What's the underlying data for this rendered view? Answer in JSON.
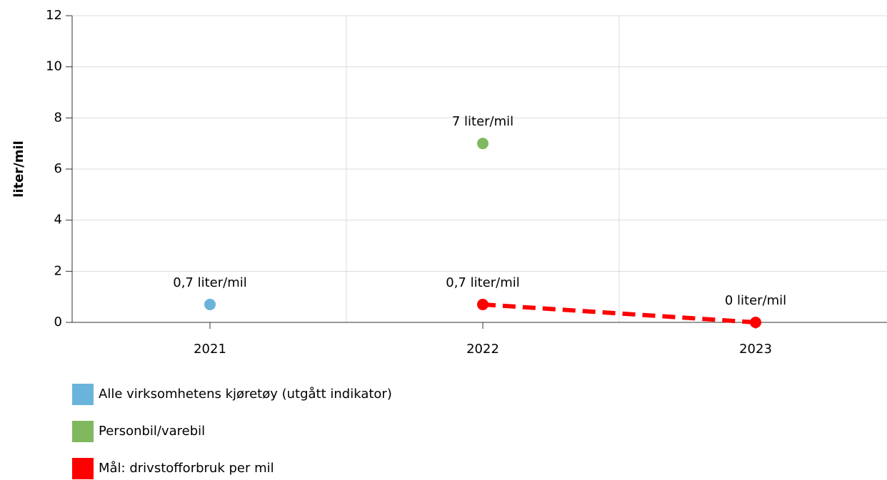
{
  "chart_data": {
    "type": "line",
    "categories": [
      "2021",
      "2022",
      "2023"
    ],
    "y_label": "liter/mil",
    "ylim": [
      0,
      12
    ],
    "yticks": [
      0,
      2,
      4,
      6,
      8,
      10,
      12
    ],
    "grid": true,
    "series": [
      {
        "name": "Alle virksomhetens kjøretøy (utgått indikator)",
        "color": "#6ab4dc",
        "values": [
          0.7,
          null,
          null
        ],
        "value_labels": [
          "0,7 liter/mil",
          null,
          null
        ]
      },
      {
        "name": "Personbil/varebil",
        "color": "#80b860",
        "values": [
          null,
          7,
          null
        ],
        "value_labels": [
          null,
          "7 liter/mil",
          null
        ]
      },
      {
        "name": "Mål: drivstofforbruk per mil",
        "color": "#ff0000",
        "dashed": true,
        "values": [
          null,
          0.7,
          0
        ],
        "value_labels": [
          null,
          "0,7 liter/mil",
          "0 liter/mil"
        ]
      }
    ]
  }
}
